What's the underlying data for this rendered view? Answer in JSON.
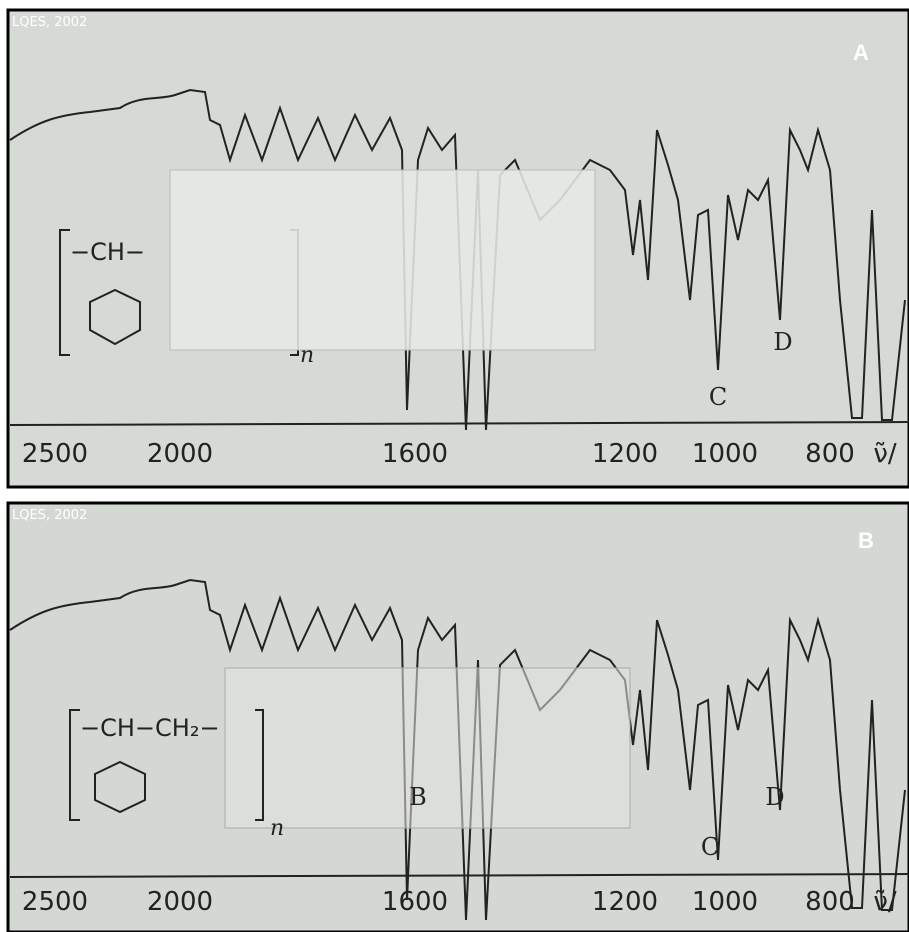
{
  "panels": [
    {
      "credit": "LQES, 2002",
      "label": "A",
      "axis_labels": [
        "2500",
        "2000",
        "1600",
        "1200",
        "1000",
        "800",
        "ν̃/"
      ],
      "peak_labels": [
        "C",
        "D"
      ],
      "structure": {
        "unit": "−CH−",
        "subscript": "n"
      }
    },
    {
      "credit": "LQES, 2002",
      "label": "B",
      "axis_labels": [
        "2500",
        "2000",
        "1600",
        "1200",
        "1000",
        "800",
        "ν̃/"
      ],
      "peak_labels": [
        "B",
        "C",
        "D"
      ],
      "structure": {
        "unit": "−CH−CH₂−",
        "subscript": "n"
      }
    }
  ]
}
